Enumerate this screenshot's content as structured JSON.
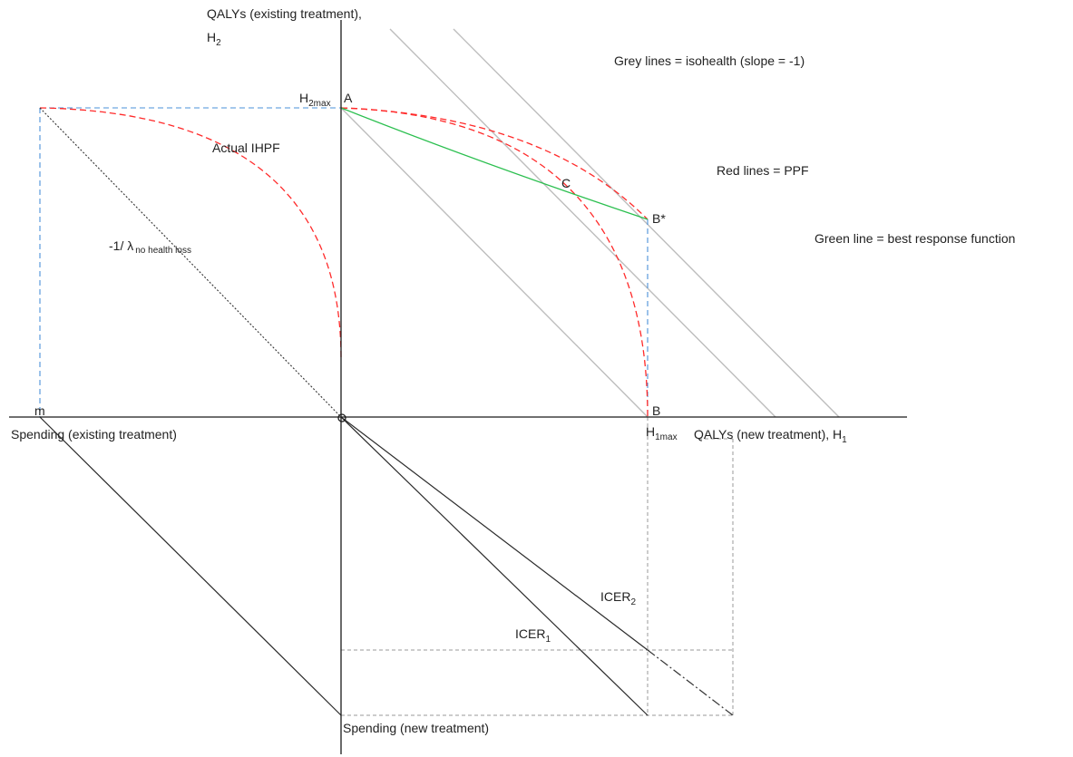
{
  "labels": {
    "y_axis_line1": "QALYs (existing treatment),",
    "y_axis_h": "H",
    "y_axis_sub": "2",
    "x_axis_right": "QALYs (new treatment), H",
    "x_axis_right_sub": "1",
    "x_axis_left": "Spending (existing treatment)",
    "y_axis_bottom": "Spending (new treatment)",
    "h2max_h": "H",
    "h2max_sub": "2max",
    "h1max_h": "H",
    "h1max_sub": "1max",
    "point_a": "A",
    "point_b": "B",
    "point_b_star": "B*",
    "point_c": "C",
    "point_m": "m",
    "actual_ihpf": "Actual IHPF",
    "lambda_main": "-1/ λ",
    "lambda_sub": "no health loss",
    "icer1_main": "ICER",
    "icer1_sub": "1",
    "icer2_main": "ICER",
    "icer2_sub": "2"
  },
  "legend": {
    "grey": "Grey lines = isohealth (slope = -1)",
    "red": "Red lines = PPF",
    "green": "Green line = best response function"
  },
  "colors": {
    "isohealth": "#bdbdbd",
    "ppf": "#ff2a2a",
    "best_response": "#2bbf4f",
    "projection": "#4a90d9"
  }
}
